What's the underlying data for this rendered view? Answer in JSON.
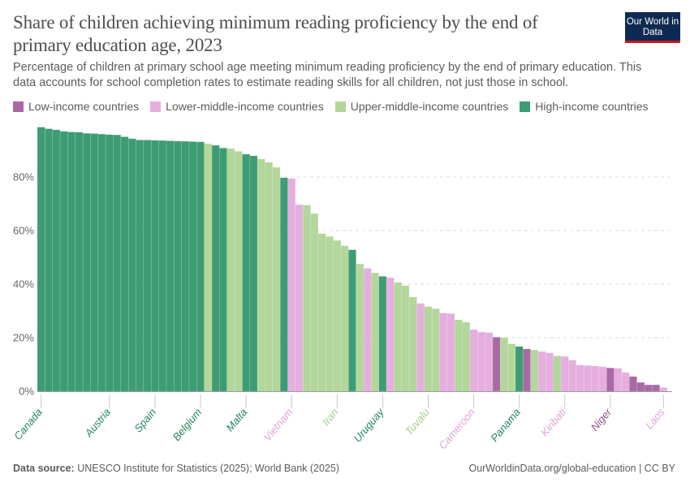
{
  "header": {
    "title": "Share of children achieving minimum reading proficiency by the end of primary education age, 2023",
    "subtitle": "Percentage of children at primary school age meeting minimum reading proficiency by the end of primary education. This data accounts for school completion rates to estimate reading skills for all children, not just those in school.",
    "logo_text": "Our World in Data"
  },
  "footer": {
    "source_label": "Data source:",
    "source_text": "UNESCO Institute for Statistics (2025); World Bank (2025)",
    "url": "OurWorldinData.org/global-education | CC BY"
  },
  "chart_data": {
    "type": "bar",
    "title": "Share of children achieving minimum reading proficiency by the end of primary education age, 2023",
    "ylim": [
      0,
      100
    ],
    "yticks": [
      0,
      20,
      40,
      60,
      80
    ],
    "ytick_labels": [
      "0%",
      "20%",
      "40%",
      "60%",
      "80%"
    ],
    "grid": true,
    "legend_position": "top",
    "groups": [
      {
        "key": "L",
        "name": "Low-income countries",
        "color": "#a86aa4"
      },
      {
        "key": "LM",
        "name": "Lower-middle-income countries",
        "color": "#e5aedf"
      },
      {
        "key": "UM",
        "name": "Upper-middle-income countries",
        "color": "#b3d69b"
      },
      {
        "key": "H",
        "name": "High-income countries",
        "color": "#3d9c73"
      }
    ],
    "label_colors": {
      "L": "#8f4f8b",
      "LM": "#e0a3da",
      "UM": "#a5cf88",
      "H": "#21875c"
    },
    "bars": [
      {
        "label": "Canada",
        "group": "H",
        "value": 98.6
      },
      {
        "group": "H",
        "value": 98.0
      },
      {
        "group": "H",
        "value": 97.6
      },
      {
        "group": "H",
        "value": 97.0
      },
      {
        "group": "H",
        "value": 96.8
      },
      {
        "group": "H",
        "value": 96.7
      },
      {
        "group": "H",
        "value": 96.3
      },
      {
        "group": "H",
        "value": 96.2
      },
      {
        "group": "H",
        "value": 96.0
      },
      {
        "label": "Austria",
        "group": "H",
        "value": 95.8
      },
      {
        "group": "H",
        "value": 95.7
      },
      {
        "group": "H",
        "value": 95.0
      },
      {
        "group": "H",
        "value": 94.3
      },
      {
        "group": "H",
        "value": 93.8
      },
      {
        "group": "H",
        "value": 93.8
      },
      {
        "label": "Spain",
        "group": "H",
        "value": 93.7
      },
      {
        "group": "H",
        "value": 93.6
      },
      {
        "group": "H",
        "value": 93.5
      },
      {
        "group": "H",
        "value": 93.4
      },
      {
        "group": "H",
        "value": 93.3
      },
      {
        "group": "H",
        "value": 93.2
      },
      {
        "label": "Belgium",
        "group": "H",
        "value": 93.1
      },
      {
        "group": "UM",
        "value": 92.4
      },
      {
        "group": "H",
        "value": 91.8
      },
      {
        "group": "H",
        "value": 90.8
      },
      {
        "group": "UM",
        "value": 90.6
      },
      {
        "group": "UM",
        "value": 89.6
      },
      {
        "label": "Malta",
        "group": "H",
        "value": 88.5
      },
      {
        "group": "H",
        "value": 87.9
      },
      {
        "group": "UM",
        "value": 86.7
      },
      {
        "group": "UM",
        "value": 85.5
      },
      {
        "group": "UM",
        "value": 83.6
      },
      {
        "group": "H",
        "value": 79.7
      },
      {
        "label": "Vietnam",
        "group": "LM",
        "value": 79.4
      },
      {
        "group": "LM",
        "value": 69.7
      },
      {
        "group": "UM",
        "value": 69.5
      },
      {
        "group": "UM",
        "value": 66.3
      },
      {
        "group": "UM",
        "value": 58.8
      },
      {
        "group": "UM",
        "value": 57.8
      },
      {
        "label": "Iran",
        "group": "UM",
        "value": 56.3
      },
      {
        "group": "UM",
        "value": 54.3
      },
      {
        "group": "H",
        "value": 52.8
      },
      {
        "group": "UM",
        "value": 47.5
      },
      {
        "group": "LM",
        "value": 45.9
      },
      {
        "group": "UM",
        "value": 44.2
      },
      {
        "label": "Uruguay",
        "group": "H",
        "value": 42.9
      },
      {
        "group": "LM",
        "value": 42.4
      },
      {
        "group": "UM",
        "value": 40.6
      },
      {
        "group": "UM",
        "value": 39.4
      },
      {
        "group": "UM",
        "value": 35.2
      },
      {
        "group": "LM",
        "value": 32.8
      },
      {
        "label": "Tuvalu",
        "group": "UM",
        "value": 31.6
      },
      {
        "group": "UM",
        "value": 30.8
      },
      {
        "group": "LM",
        "value": 29.2
      },
      {
        "group": "LM",
        "value": 29.0
      },
      {
        "group": "UM",
        "value": 26.7
      },
      {
        "group": "UM",
        "value": 25.8
      },
      {
        "label": "Cameroon",
        "group": "LM",
        "value": 23.0
      },
      {
        "group": "LM",
        "value": 22.1
      },
      {
        "group": "LM",
        "value": 21.9
      },
      {
        "group": "L",
        "value": 20.2
      },
      {
        "group": "UM",
        "value": 20.0
      },
      {
        "group": "UM",
        "value": 17.7
      },
      {
        "label": "Panama",
        "group": "H",
        "value": 16.7
      },
      {
        "group": "L",
        "value": 15.8
      },
      {
        "group": "UM",
        "value": 15.4
      },
      {
        "group": "LM",
        "value": 14.8
      },
      {
        "group": "LM",
        "value": 14.3
      },
      {
        "group": "UM",
        "value": 13.2
      },
      {
        "label": "Kiribati",
        "group": "LM",
        "value": 13.0
      },
      {
        "group": "LM",
        "value": 11.6
      },
      {
        "group": "LM",
        "value": 9.8
      },
      {
        "group": "LM",
        "value": 9.6
      },
      {
        "group": "LM",
        "value": 9.4
      },
      {
        "group": "LM",
        "value": 9.2
      },
      {
        "label": "Niger",
        "group": "L",
        "value": 8.7
      },
      {
        "group": "LM",
        "value": 8.6
      },
      {
        "group": "LM",
        "value": 7.0
      },
      {
        "group": "L",
        "value": 5.5
      },
      {
        "group": "L",
        "value": 3.3
      },
      {
        "group": "L",
        "value": 2.4
      },
      {
        "group": "L",
        "value": 2.4
      },
      {
        "label": "Laos",
        "group": "LM",
        "value": 1.4
      }
    ]
  }
}
